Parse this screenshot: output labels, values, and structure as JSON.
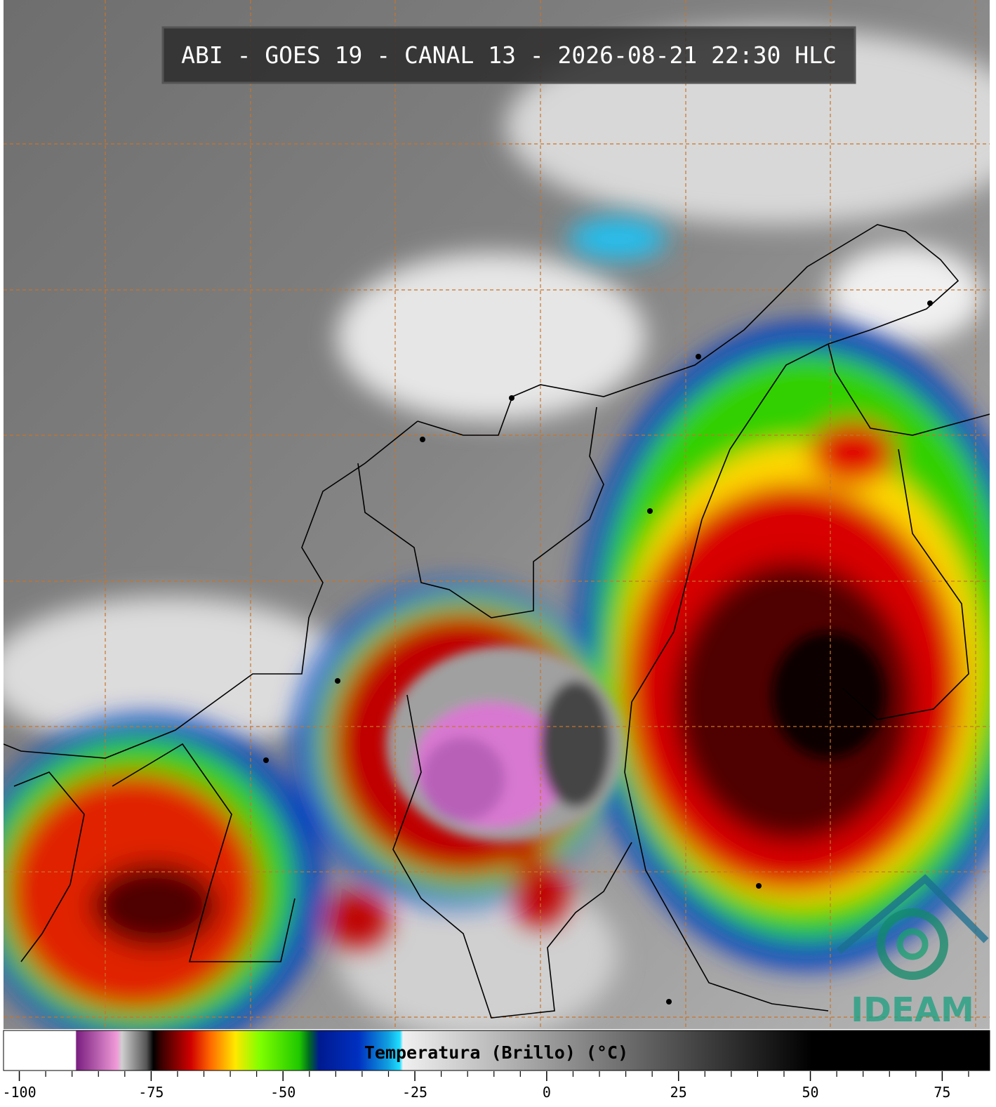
{
  "header": {
    "title": "ABI - GOES 19 - CANAL 13 - 2026-08-21 22:30 HLC"
  },
  "logo": {
    "text": "IDEAM"
  },
  "colorbar": {
    "label": "Temperatura (Brillo) (°C)",
    "lim": [
      -103,
      84
    ],
    "ticks": [
      -100,
      -75,
      -50,
      -25,
      0,
      25,
      50,
      75
    ],
    "minor_ticks": [
      -95,
      -90,
      -85,
      -80,
      -70,
      -65,
      -60,
      -55,
      -45,
      -40,
      -35,
      -30,
      -20,
      -15,
      -10,
      -5,
      5,
      10,
      15,
      20,
      30,
      35,
      40,
      45,
      55,
      60,
      65,
      70,
      80
    ]
  }
}
